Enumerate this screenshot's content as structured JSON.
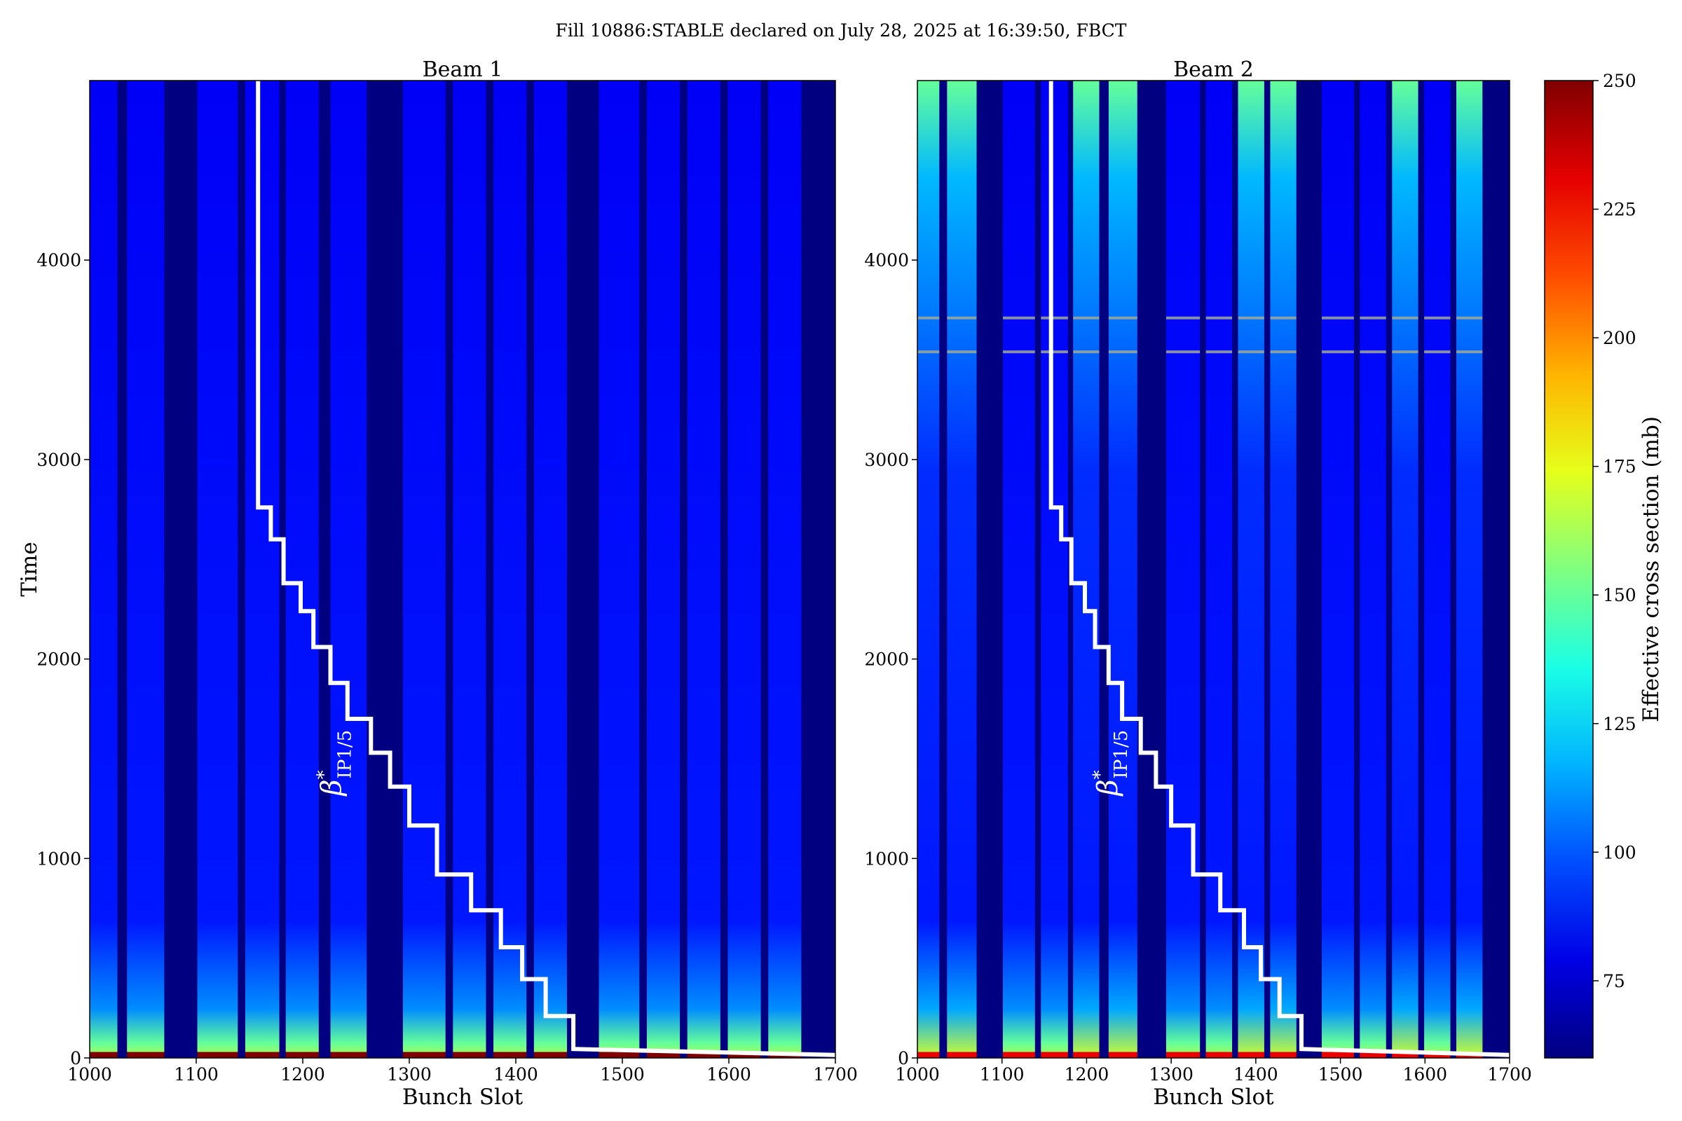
{
  "figure": {
    "suptitle": "Fill 10886:STABLE declared on July 28, 2025 at 16:39:50, FBCT"
  },
  "colorbar": {
    "label": "Effective cross section (mb)",
    "range": [
      60,
      250
    ],
    "ticks": [
      75,
      100,
      125,
      150,
      175,
      200,
      225,
      250
    ],
    "colormap": "jet"
  },
  "chart_data": [
    {
      "type": "heatmap",
      "title": "Beam 1",
      "xlabel": "Bunch Slot",
      "ylabel": "Time",
      "xlim": [
        1000,
        1700
      ],
      "ylim": [
        0,
        4900
      ],
      "xticks": [
        1000,
        1100,
        1200,
        1300,
        1400,
        1500,
        1600,
        1700
      ],
      "yticks": [
        0,
        1000,
        2000,
        3000,
        4000
      ],
      "empty_slots": [
        [
          1026,
          1035
        ],
        [
          1070,
          1101
        ],
        [
          1139,
          1146
        ],
        [
          1178,
          1184
        ],
        [
          1215,
          1226
        ],
        [
          1260,
          1294
        ],
        [
          1334,
          1341
        ],
        [
          1372,
          1379
        ],
        [
          1410,
          1417
        ],
        [
          1448,
          1478
        ],
        [
          1516,
          1523
        ],
        [
          1554,
          1561
        ],
        [
          1592,
          1599
        ],
        [
          1630,
          1637
        ],
        [
          1668,
          1700
        ]
      ],
      "background_value": 82,
      "start_value": 250,
      "beta_star_line": {
        "label": "β*IP1/5",
        "points": [
          [
            1158,
            4900
          ],
          [
            1158,
            2760
          ],
          [
            1170,
            2760
          ],
          [
            1170,
            2600
          ],
          [
            1182,
            2600
          ],
          [
            1182,
            2380
          ],
          [
            1198,
            2380
          ],
          [
            1198,
            2240
          ],
          [
            1210,
            2240
          ],
          [
            1210,
            2060
          ],
          [
            1226,
            2060
          ],
          [
            1226,
            1880
          ],
          [
            1242,
            1880
          ],
          [
            1242,
            1700
          ],
          [
            1264,
            1700
          ],
          [
            1264,
            1530
          ],
          [
            1282,
            1530
          ],
          [
            1282,
            1360
          ],
          [
            1300,
            1360
          ],
          [
            1300,
            1165
          ],
          [
            1326,
            1165
          ],
          [
            1326,
            920
          ],
          [
            1358,
            920
          ],
          [
            1358,
            740
          ],
          [
            1386,
            740
          ],
          [
            1386,
            555
          ],
          [
            1406,
            555
          ],
          [
            1406,
            395
          ],
          [
            1428,
            395
          ],
          [
            1428,
            210
          ],
          [
            1454,
            210
          ],
          [
            1454,
            45
          ],
          [
            1700,
            15
          ]
        ]
      }
    },
    {
      "type": "heatmap",
      "title": "Beam 2",
      "xlabel": "Bunch Slot",
      "ylabel": "",
      "xlim": [
        1000,
        1700
      ],
      "ylim": [
        0,
        4900
      ],
      "xticks": [
        1000,
        1100,
        1200,
        1300,
        1400,
        1500,
        1600,
        1700
      ],
      "yticks": [
        0,
        1000,
        2000,
        3000,
        4000
      ],
      "empty_slots": [
        [
          1026,
          1035
        ],
        [
          1070,
          1101
        ],
        [
          1139,
          1146
        ],
        [
          1178,
          1184
        ],
        [
          1215,
          1226
        ],
        [
          1260,
          1294
        ],
        [
          1334,
          1341
        ],
        [
          1372,
          1379
        ],
        [
          1410,
          1417
        ],
        [
          1448,
          1478
        ],
        [
          1516,
          1523
        ],
        [
          1554,
          1561
        ],
        [
          1592,
          1599
        ],
        [
          1630,
          1637
        ],
        [
          1668,
          1700
        ]
      ],
      "bright_trains": [
        [
          1000,
          1026
        ],
        [
          1035,
          1070
        ],
        [
          1184,
          1215
        ],
        [
          1226,
          1260
        ],
        [
          1379,
          1410
        ],
        [
          1417,
          1448
        ],
        [
          1561,
          1592
        ],
        [
          1637,
          1668
        ]
      ],
      "background_value": 82,
      "bright_value": 155,
      "start_value": 230,
      "stripes": [
        3540,
        3710
      ],
      "beta_star_line": {
        "label": "β*IP1/5",
        "points": [
          [
            1158,
            4900
          ],
          [
            1158,
            2760
          ],
          [
            1170,
            2760
          ],
          [
            1170,
            2600
          ],
          [
            1182,
            2600
          ],
          [
            1182,
            2380
          ],
          [
            1198,
            2380
          ],
          [
            1198,
            2240
          ],
          [
            1210,
            2240
          ],
          [
            1210,
            2060
          ],
          [
            1226,
            2060
          ],
          [
            1226,
            1880
          ],
          [
            1242,
            1880
          ],
          [
            1242,
            1700
          ],
          [
            1264,
            1700
          ],
          [
            1264,
            1530
          ],
          [
            1282,
            1530
          ],
          [
            1282,
            1360
          ],
          [
            1300,
            1360
          ],
          [
            1300,
            1165
          ],
          [
            1326,
            1165
          ],
          [
            1326,
            920
          ],
          [
            1358,
            920
          ],
          [
            1358,
            740
          ],
          [
            1386,
            740
          ],
          [
            1386,
            555
          ],
          [
            1406,
            555
          ],
          [
            1406,
            395
          ],
          [
            1428,
            395
          ],
          [
            1428,
            210
          ],
          [
            1454,
            210
          ],
          [
            1454,
            45
          ],
          [
            1700,
            15
          ]
        ]
      }
    }
  ]
}
